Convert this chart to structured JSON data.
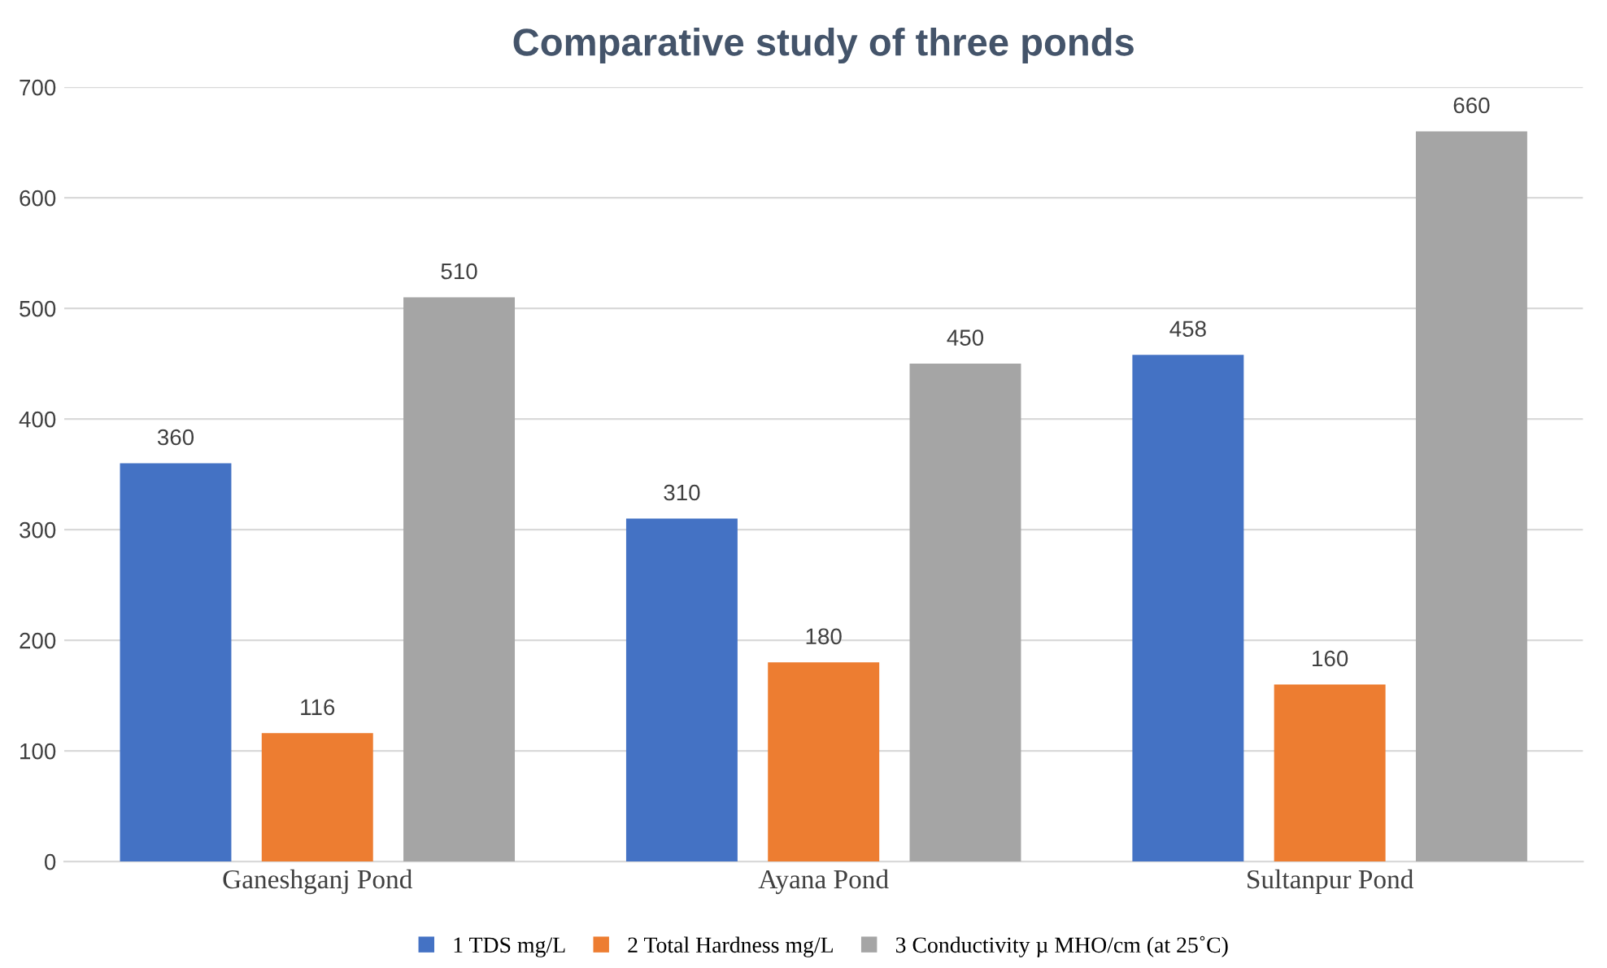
{
  "chart_data": {
    "type": "bar",
    "title": "Comparative study of three ponds",
    "categories": [
      "Ganeshganj Pond",
      "Ayana Pond",
      "Sultanpur Pond"
    ],
    "series": [
      {
        "name": "1 TDS mg/L",
        "color": "#4472c4",
        "values": [
          360,
          310,
          458
        ]
      },
      {
        "name": "2 Total Hardness mg/L",
        "color": "#ed7d31",
        "values": [
          116,
          180,
          160
        ]
      },
      {
        "name": "3 Conductivity µ MHO/cm (at 25˚C)",
        "color": "#a5a5a5",
        "values": [
          510,
          450,
          660
        ]
      }
    ],
    "ylim": [
      0,
      700
    ],
    "yticks": [
      0,
      100,
      200,
      300,
      400,
      500,
      600,
      700
    ],
    "grid": "y",
    "legend": "bottom",
    "data_labels": true
  }
}
